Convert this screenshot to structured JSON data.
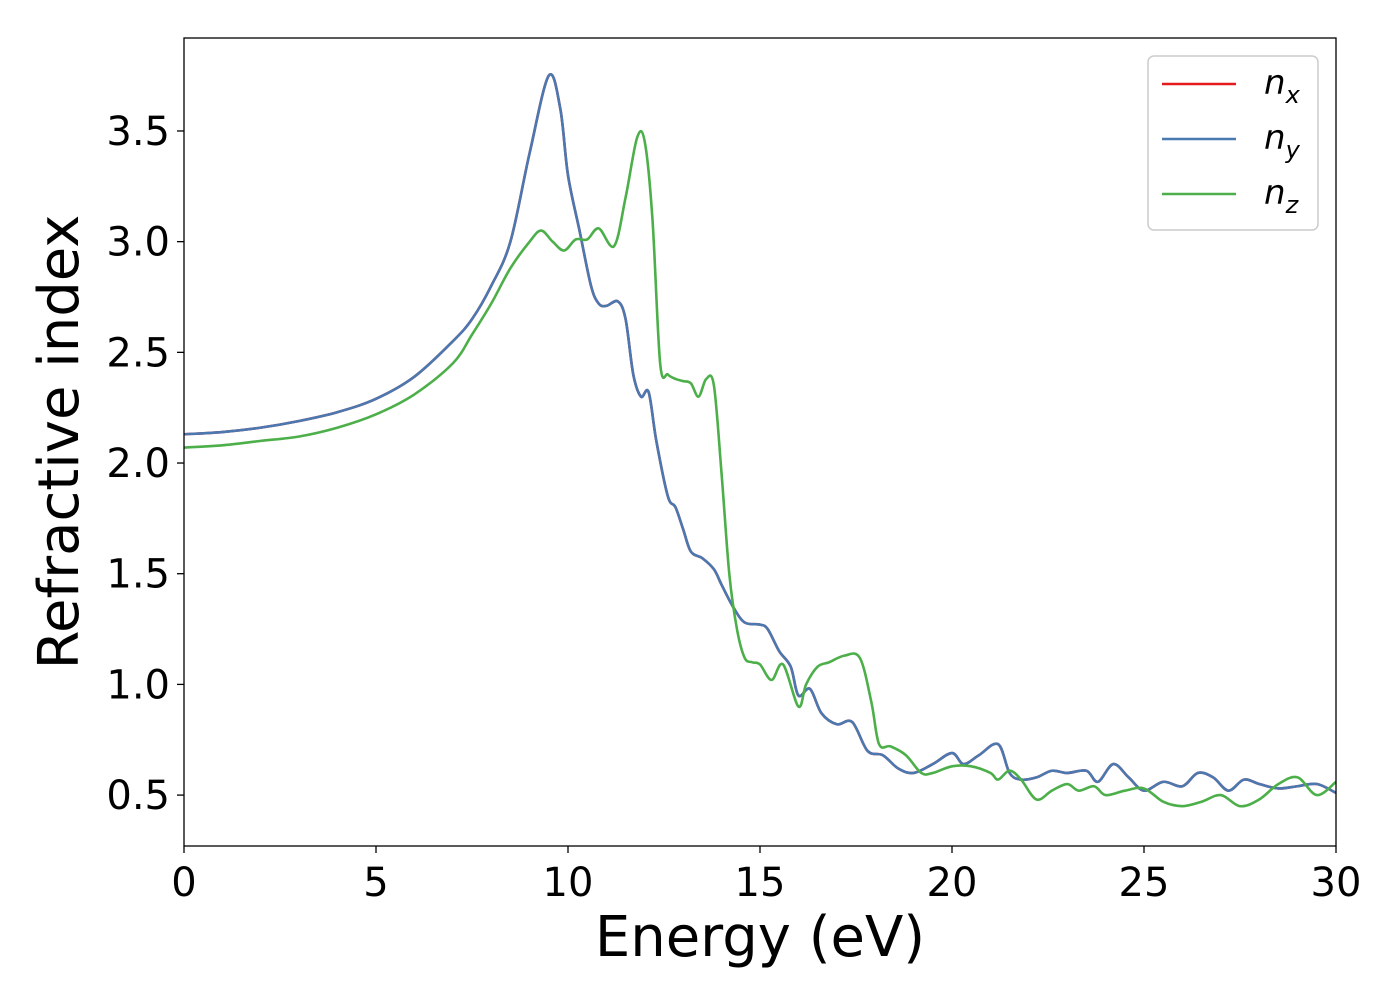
{
  "chart_data": {
    "type": "line",
    "title": "",
    "xlabel": "Energy (eV)",
    "ylabel": "Refractive index",
    "xlim": [
      0,
      30
    ],
    "ylim": [
      0.27,
      3.92
    ],
    "x_ticks": [
      0,
      5,
      10,
      15,
      20,
      25,
      30
    ],
    "x_tick_labels": [
      "0",
      "5",
      "10",
      "15",
      "20",
      "25",
      "30"
    ],
    "y_ticks": [
      0.5,
      1.0,
      1.5,
      2.0,
      2.5,
      3.0,
      3.5
    ],
    "y_tick_labels": [
      "0.5",
      "1.0",
      "1.5",
      "2.0",
      "2.5",
      "3.0",
      "3.5"
    ],
    "grid": false,
    "legend_position": "top-right",
    "series": [
      {
        "name": "n",
        "subscript": "x",
        "color": "#e41a1c",
        "points": [
          [
            0,
            2.13
          ],
          [
            1,
            2.14
          ],
          [
            2,
            2.16
          ],
          [
            3,
            2.19
          ],
          [
            4,
            2.23
          ],
          [
            5,
            2.29
          ],
          [
            6,
            2.39
          ],
          [
            7,
            2.55
          ],
          [
            7.5,
            2.65
          ],
          [
            8,
            2.8
          ],
          [
            8.5,
            3.0
          ],
          [
            9,
            3.4
          ],
          [
            9.5,
            3.75
          ],
          [
            9.8,
            3.6
          ],
          [
            10,
            3.3
          ],
          [
            10.3,
            3.05
          ],
          [
            10.6,
            2.8
          ],
          [
            10.8,
            2.72
          ],
          [
            11,
            2.71
          ],
          [
            11.3,
            2.73
          ],
          [
            11.5,
            2.65
          ],
          [
            11.7,
            2.4
          ],
          [
            11.9,
            2.3
          ],
          [
            12.1,
            2.32
          ],
          [
            12.3,
            2.1
          ],
          [
            12.6,
            1.85
          ],
          [
            12.8,
            1.8
          ],
          [
            13,
            1.7
          ],
          [
            13.2,
            1.6
          ],
          [
            13.5,
            1.57
          ],
          [
            13.8,
            1.52
          ],
          [
            14,
            1.45
          ],
          [
            14.3,
            1.35
          ],
          [
            14.6,
            1.28
          ],
          [
            15,
            1.27
          ],
          [
            15.2,
            1.25
          ],
          [
            15.5,
            1.15
          ],
          [
            15.8,
            1.08
          ],
          [
            16,
            0.95
          ],
          [
            16.3,
            0.98
          ],
          [
            16.6,
            0.87
          ],
          [
            17,
            0.82
          ],
          [
            17.4,
            0.83
          ],
          [
            17.8,
            0.7
          ],
          [
            18.2,
            0.68
          ],
          [
            18.6,
            0.62
          ],
          [
            19,
            0.6
          ],
          [
            19.5,
            0.64
          ],
          [
            20,
            0.69
          ],
          [
            20.3,
            0.64
          ],
          [
            20.7,
            0.68
          ],
          [
            21.2,
            0.73
          ],
          [
            21.5,
            0.6
          ],
          [
            21.8,
            0.57
          ],
          [
            22.2,
            0.58
          ],
          [
            22.6,
            0.61
          ],
          [
            23,
            0.6
          ],
          [
            23.5,
            0.61
          ],
          [
            23.8,
            0.56
          ],
          [
            24.2,
            0.64
          ],
          [
            24.6,
            0.58
          ],
          [
            25,
            0.52
          ],
          [
            25.5,
            0.56
          ],
          [
            26,
            0.54
          ],
          [
            26.4,
            0.6
          ],
          [
            26.8,
            0.58
          ],
          [
            27.2,
            0.52
          ],
          [
            27.6,
            0.57
          ],
          [
            28,
            0.55
          ],
          [
            28.5,
            0.53
          ],
          [
            29,
            0.54
          ],
          [
            29.5,
            0.55
          ],
          [
            30,
            0.51
          ]
        ]
      },
      {
        "name": "n",
        "subscript": "y",
        "color": "#4a78b0",
        "points": [
          [
            0,
            2.13
          ],
          [
            1,
            2.14
          ],
          [
            2,
            2.16
          ],
          [
            3,
            2.19
          ],
          [
            4,
            2.23
          ],
          [
            5,
            2.29
          ],
          [
            6,
            2.39
          ],
          [
            7,
            2.55
          ],
          [
            7.5,
            2.65
          ],
          [
            8,
            2.8
          ],
          [
            8.5,
            3.0
          ],
          [
            9,
            3.4
          ],
          [
            9.5,
            3.75
          ],
          [
            9.8,
            3.6
          ],
          [
            10,
            3.3
          ],
          [
            10.3,
            3.05
          ],
          [
            10.6,
            2.8
          ],
          [
            10.8,
            2.72
          ],
          [
            11,
            2.71
          ],
          [
            11.3,
            2.73
          ],
          [
            11.5,
            2.65
          ],
          [
            11.7,
            2.4
          ],
          [
            11.9,
            2.3
          ],
          [
            12.1,
            2.32
          ],
          [
            12.3,
            2.1
          ],
          [
            12.6,
            1.85
          ],
          [
            12.8,
            1.8
          ],
          [
            13,
            1.7
          ],
          [
            13.2,
            1.6
          ],
          [
            13.5,
            1.57
          ],
          [
            13.8,
            1.52
          ],
          [
            14,
            1.45
          ],
          [
            14.3,
            1.35
          ],
          [
            14.6,
            1.28
          ],
          [
            15,
            1.27
          ],
          [
            15.2,
            1.25
          ],
          [
            15.5,
            1.15
          ],
          [
            15.8,
            1.08
          ],
          [
            16,
            0.95
          ],
          [
            16.3,
            0.98
          ],
          [
            16.6,
            0.87
          ],
          [
            17,
            0.82
          ],
          [
            17.4,
            0.83
          ],
          [
            17.8,
            0.7
          ],
          [
            18.2,
            0.68
          ],
          [
            18.6,
            0.62
          ],
          [
            19,
            0.6
          ],
          [
            19.5,
            0.64
          ],
          [
            20,
            0.69
          ],
          [
            20.3,
            0.64
          ],
          [
            20.7,
            0.68
          ],
          [
            21.2,
            0.73
          ],
          [
            21.5,
            0.6
          ],
          [
            21.8,
            0.57
          ],
          [
            22.2,
            0.58
          ],
          [
            22.6,
            0.61
          ],
          [
            23,
            0.6
          ],
          [
            23.5,
            0.61
          ],
          [
            23.8,
            0.56
          ],
          [
            24.2,
            0.64
          ],
          [
            24.6,
            0.58
          ],
          [
            25,
            0.52
          ],
          [
            25.5,
            0.56
          ],
          [
            26,
            0.54
          ],
          [
            26.4,
            0.6
          ],
          [
            26.8,
            0.58
          ],
          [
            27.2,
            0.52
          ],
          [
            27.6,
            0.57
          ],
          [
            28,
            0.55
          ],
          [
            28.5,
            0.53
          ],
          [
            29,
            0.54
          ],
          [
            29.5,
            0.55
          ],
          [
            30,
            0.51
          ]
        ]
      },
      {
        "name": "n",
        "subscript": "z",
        "color": "#4daf4a",
        "points": [
          [
            0,
            2.07
          ],
          [
            1,
            2.08
          ],
          [
            2,
            2.1
          ],
          [
            3,
            2.12
          ],
          [
            4,
            2.16
          ],
          [
            5,
            2.22
          ],
          [
            6,
            2.31
          ],
          [
            7,
            2.45
          ],
          [
            7.5,
            2.58
          ],
          [
            8,
            2.72
          ],
          [
            8.5,
            2.88
          ],
          [
            9,
            3.0
          ],
          [
            9.3,
            3.05
          ],
          [
            9.6,
            3.0
          ],
          [
            9.9,
            2.96
          ],
          [
            10.2,
            3.01
          ],
          [
            10.5,
            3.01
          ],
          [
            10.8,
            3.06
          ],
          [
            11.2,
            2.98
          ],
          [
            11.5,
            3.2
          ],
          [
            11.8,
            3.47
          ],
          [
            12,
            3.45
          ],
          [
            12.2,
            3.1
          ],
          [
            12.4,
            2.45
          ],
          [
            12.6,
            2.4
          ],
          [
            12.8,
            2.38
          ],
          [
            13,
            2.37
          ],
          [
            13.2,
            2.36
          ],
          [
            13.4,
            2.3
          ],
          [
            13.6,
            2.38
          ],
          [
            13.8,
            2.35
          ],
          [
            14,
            1.95
          ],
          [
            14.2,
            1.5
          ],
          [
            14.4,
            1.25
          ],
          [
            14.6,
            1.12
          ],
          [
            14.8,
            1.1
          ],
          [
            15,
            1.09
          ],
          [
            15.3,
            1.02
          ],
          [
            15.6,
            1.09
          ],
          [
            16,
            0.9
          ],
          [
            16.2,
            1.0
          ],
          [
            16.5,
            1.08
          ],
          [
            16.8,
            1.1
          ],
          [
            17.2,
            1.13
          ],
          [
            17.6,
            1.12
          ],
          [
            17.9,
            0.92
          ],
          [
            18.1,
            0.73
          ],
          [
            18.4,
            0.72
          ],
          [
            18.8,
            0.68
          ],
          [
            19.2,
            0.6
          ],
          [
            19.5,
            0.6
          ],
          [
            20,
            0.63
          ],
          [
            20.5,
            0.63
          ],
          [
            21,
            0.6
          ],
          [
            21.2,
            0.57
          ],
          [
            21.5,
            0.61
          ],
          [
            21.8,
            0.57
          ],
          [
            22.2,
            0.48
          ],
          [
            22.6,
            0.52
          ],
          [
            23,
            0.55
          ],
          [
            23.3,
            0.52
          ],
          [
            23.7,
            0.54
          ],
          [
            24,
            0.5
          ],
          [
            24.5,
            0.52
          ],
          [
            25,
            0.53
          ],
          [
            25.5,
            0.47
          ],
          [
            26,
            0.45
          ],
          [
            26.5,
            0.47
          ],
          [
            27,
            0.5
          ],
          [
            27.5,
            0.45
          ],
          [
            28,
            0.48
          ],
          [
            28.5,
            0.55
          ],
          [
            29,
            0.58
          ],
          [
            29.5,
            0.5
          ],
          [
            30,
            0.56
          ]
        ]
      }
    ]
  }
}
